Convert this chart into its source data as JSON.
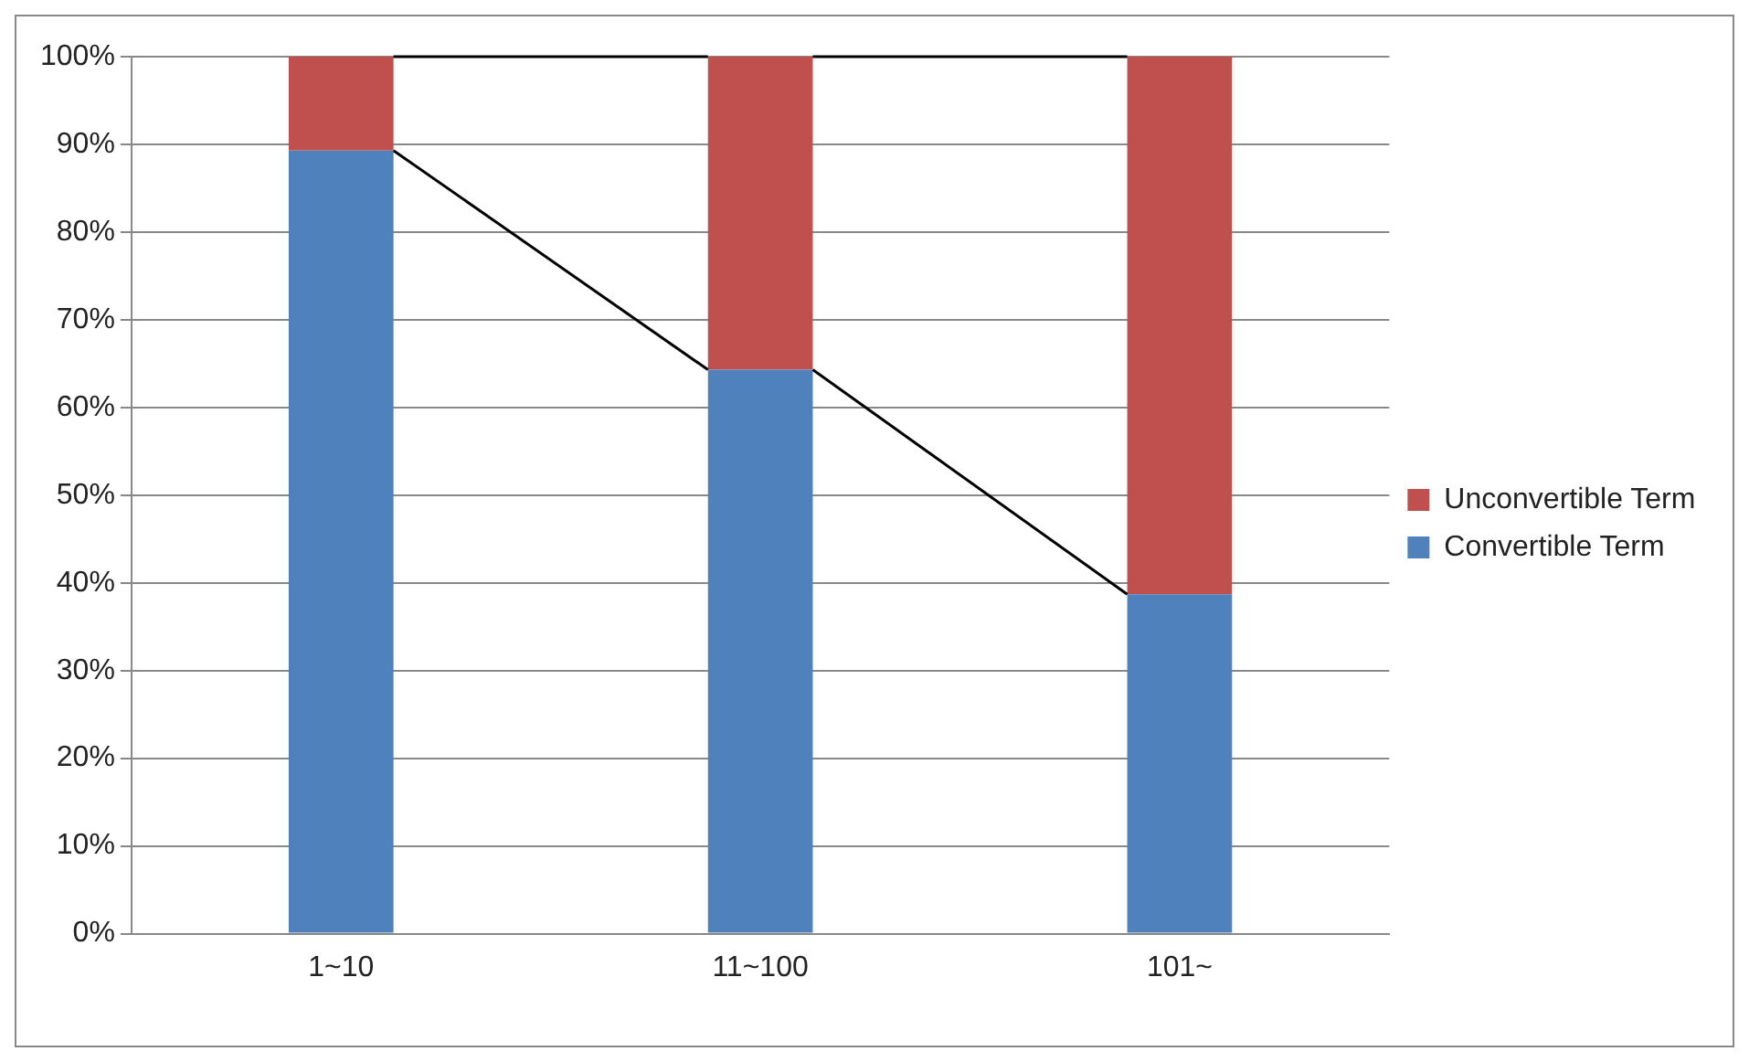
{
  "chart_data": {
    "type": "bar",
    "stacked": true,
    "categories": [
      "1~10",
      "11~100",
      "101~"
    ],
    "series": [
      {
        "name": "Convertible Term",
        "color": "#4f81bd",
        "values": [
          89.3,
          64.3,
          38.7
        ]
      },
      {
        "name": "Unconvertible Term",
        "color": "#c0504d",
        "values": [
          10.7,
          35.7,
          61.3
        ]
      }
    ],
    "ylim": [
      0,
      100
    ],
    "yticks": [
      {
        "value": 0,
        "label": "0%"
      },
      {
        "value": 10,
        "label": "10%"
      },
      {
        "value": 20,
        "label": "20%"
      },
      {
        "value": 30,
        "label": "30%"
      },
      {
        "value": 40,
        "label": "40%"
      },
      {
        "value": 50,
        "label": "50%"
      },
      {
        "value": 60,
        "label": "60%"
      },
      {
        "value": 70,
        "label": "70%"
      },
      {
        "value": 80,
        "label": "80%"
      },
      {
        "value": 90,
        "label": "90%"
      },
      {
        "value": 100,
        "label": "100%"
      }
    ],
    "grid": "y",
    "legend": "right"
  }
}
